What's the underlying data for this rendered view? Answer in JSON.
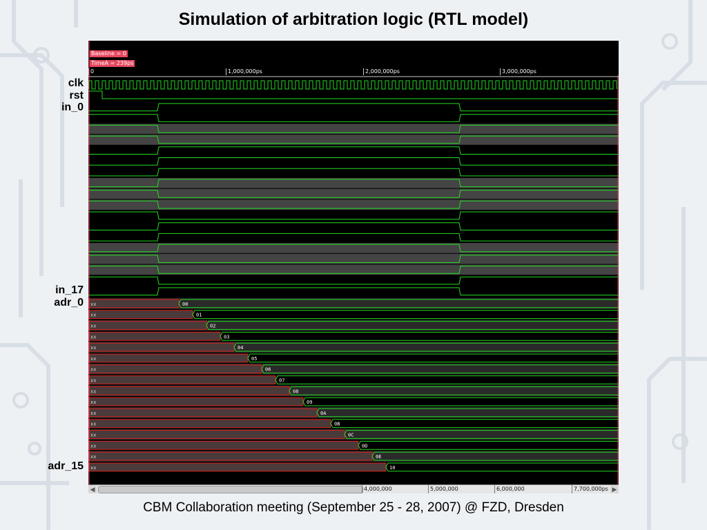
{
  "slide": {
    "title": "Simulation of arbitration logic (RTL model)",
    "footer": "CBM Collaboration meeting (September 25 - 28, 2007) @ FZD, Dresden"
  },
  "signal_labels": {
    "clk": "clk",
    "rst": "rst",
    "in_first": "in_0",
    "in_last": "in_17",
    "adr_first": "adr_0",
    "adr_last": "adr_15"
  },
  "viewer": {
    "baseline": "Baseline = 0",
    "timeA": "TimeA = 239ps",
    "time_ticks": [
      "0",
      "1,000,000ps",
      "2,000,000ps",
      "3,000,000ps"
    ],
    "scrollbar_ticks": [
      "4,000,000",
      "5,000,000",
      "6,000,000",
      "7,700,000ps"
    ],
    "colors": {
      "background": "#000000",
      "signal": "#22dd22",
      "unknown": "#dd2222",
      "marker": "#e8475f",
      "alt_row": "#444444"
    },
    "adr_unknown": "xx",
    "adr_values": [
      "00",
      "01",
      "02",
      "03",
      "04",
      "05",
      "06",
      "07",
      "08",
      "09",
      "0A",
      "0B",
      "0C",
      "0D",
      "0E",
      "10"
    ]
  }
}
